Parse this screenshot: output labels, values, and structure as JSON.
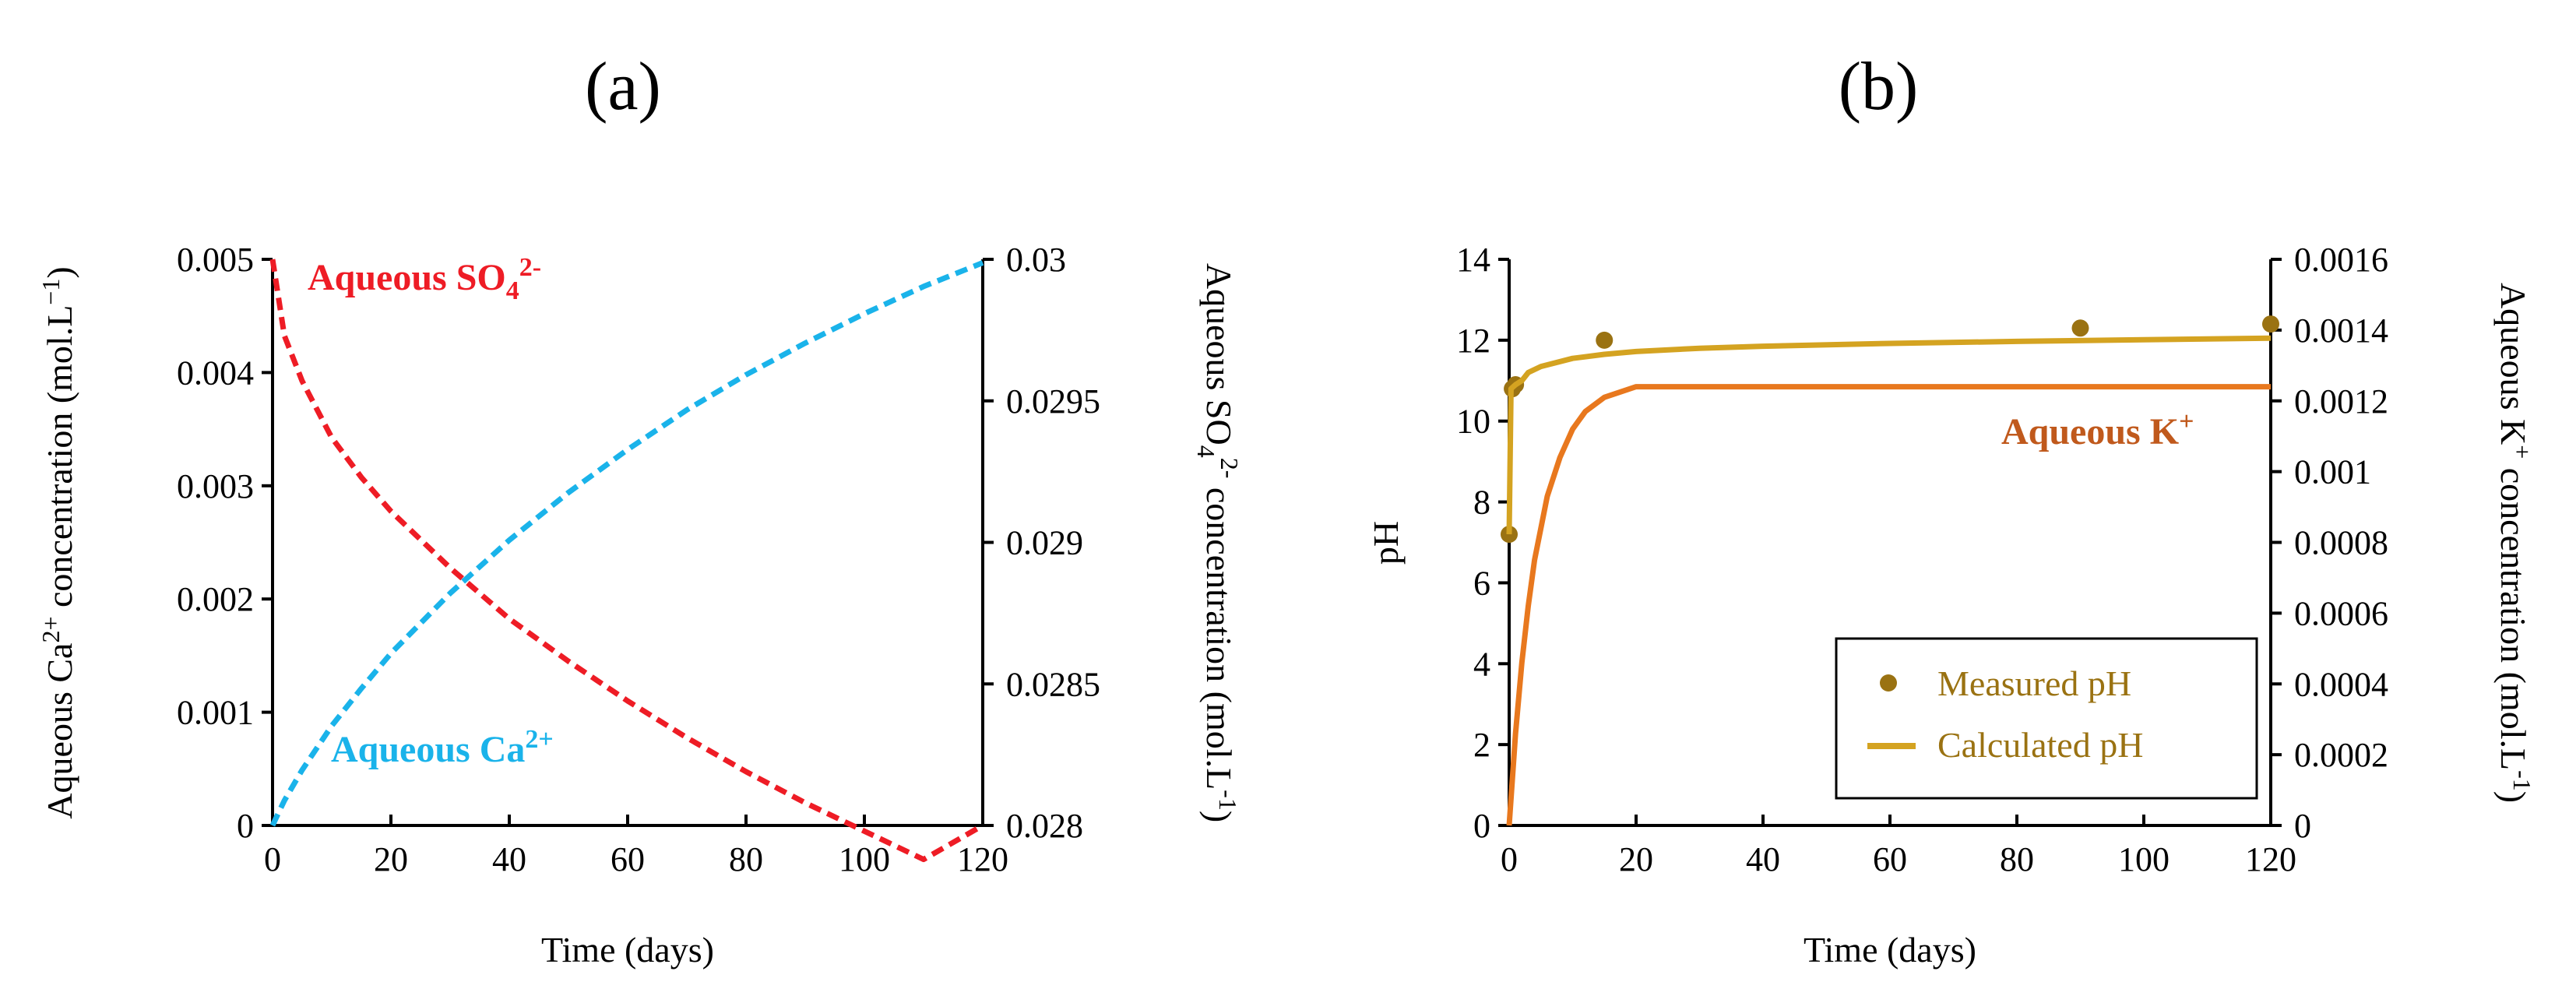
{
  "chart_data": [
    {
      "type": "line",
      "panel": "(a)",
      "xlabel": "Time (days)",
      "ylabel": "Aqueous Ca2+ concentration (mol.L−1)",
      "ylabel_parts": {
        "pre": "Aqueous Ca",
        "sup": "2+",
        "post": " concentration (mol.L",
        "sup2": "−1",
        "end": ")"
      },
      "y2label": "Aqueous SO42- concentration (mol.L-1)",
      "y2label_parts": {
        "pre": "Aqueous SO",
        "sub": "4",
        "sup": "2-",
        "post": " concentration (mol.L",
        "sup2": "-1",
        "end": ")"
      },
      "xlim": [
        0,
        120
      ],
      "ylim": [
        0,
        0.005
      ],
      "y2lim": [
        0.028,
        0.03
      ],
      "x_ticks": [
        "0",
        "20",
        "40",
        "60",
        "80",
        "100",
        "120"
      ],
      "y_ticks": [
        "0",
        "0.001",
        "0.002",
        "0.003",
        "0.004",
        "0.005"
      ],
      "y2_ticks": [
        "0.028",
        "0.0285",
        "0.029",
        "0.0295",
        "0.03"
      ],
      "series": [
        {
          "name": "Aqueous SO42-",
          "label_parts": {
            "pre": "Aqueous SO",
            "sub": "4",
            "sup": "2-"
          },
          "axis": "right",
          "style": "dashed",
          "color": "#ee1c25",
          "x": [
            0,
            2,
            5,
            10,
            15,
            20,
            30,
            40,
            50,
            60,
            70,
            80,
            90,
            100,
            110,
            120
          ],
          "y": [
            0.03,
            0.02973,
            0.02957,
            0.02937,
            0.02923,
            0.02911,
            0.02891,
            0.02873,
            0.02858,
            0.02844,
            0.02831,
            0.02819,
            0.02808,
            0.02798,
            0.02788,
            0.028
          ]
        },
        {
          "name": "Aqueous Ca2+",
          "label_parts": {
            "pre": "Aqueous Ca",
            "sup": "2+"
          },
          "axis": "left",
          "style": "dashed",
          "color": "#1ab3ea",
          "x": [
            0,
            2,
            5,
            10,
            15,
            20,
            30,
            40,
            50,
            60,
            70,
            80,
            90,
            100,
            110,
            120
          ],
          "y": [
            0,
            0.00022,
            0.00049,
            0.00088,
            0.00121,
            0.00152,
            0.00205,
            0.00252,
            0.00294,
            0.00332,
            0.00367,
            0.00398,
            0.00426,
            0.00452,
            0.00476,
            0.00497
          ]
        }
      ]
    },
    {
      "type": "line",
      "panel": "(b)",
      "xlabel": "Time (days)",
      "ylabel": "pH",
      "y2label": "Aqueous K+ concentration (mol.L-1)",
      "y2label_parts": {
        "pre": "Aqueous K",
        "sup": "+",
        "post": " concentration (mol.L",
        "sup2": "-1",
        "end": ")"
      },
      "xlim": [
        0,
        120
      ],
      "ylim": [
        0,
        14
      ],
      "y2lim": [
        0,
        0.0016
      ],
      "x_ticks": [
        "0",
        "20",
        "40",
        "60",
        "80",
        "100",
        "120"
      ],
      "y_ticks": [
        "0",
        "2",
        "4",
        "6",
        "8",
        "10",
        "12",
        "14"
      ],
      "y2_ticks": [
        "0",
        "0.0002",
        "0.0004",
        "0.0006",
        "0.0008",
        "0.001",
        "0.0012",
        "0.0014",
        "0.0016"
      ],
      "series": [
        {
          "name": "Measured pH",
          "type": "scatter",
          "axis": "left",
          "color": "#9a7212",
          "x": [
            0,
            0.5,
            1,
            15,
            90,
            120
          ],
          "y": [
            7.2,
            10.8,
            10.9,
            12.0,
            12.3,
            12.4
          ]
        },
        {
          "name": "Calculated pH",
          "type": "line",
          "axis": "left",
          "color": "#d4a321",
          "x": [
            0,
            0.3,
            1,
            2,
            3,
            5,
            10,
            15,
            20,
            30,
            40,
            60,
            80,
            100,
            120
          ],
          "y": [
            7.2,
            10.8,
            10.9,
            11.0,
            11.2,
            11.35,
            11.55,
            11.65,
            11.72,
            11.8,
            11.85,
            11.92,
            11.97,
            12.01,
            12.05
          ]
        },
        {
          "name": "Aqueous K+",
          "label_parts": {
            "pre": "Aqueous K",
            "sup": "+"
          },
          "type": "line",
          "axis": "right",
          "color": "#e8781e",
          "label_color": "#c0591c",
          "x": [
            0,
            1,
            2,
            3,
            4,
            6,
            8,
            10,
            12,
            15,
            20,
            25,
            30,
            40,
            60,
            80,
            100,
            120
          ],
          "y": [
            0,
            0.00026,
            0.00046,
            0.00062,
            0.00075,
            0.00093,
            0.00104,
            0.00112,
            0.00117,
            0.00121,
            0.00124,
            0.00124,
            0.00124,
            0.00124,
            0.00124,
            0.00124,
            0.00124,
            0.00124
          ]
        }
      ],
      "legend": {
        "position": "bottom-right",
        "entries": [
          "Measured pH",
          "Calculated pH"
        ],
        "text_color": "#9a7212"
      }
    }
  ]
}
